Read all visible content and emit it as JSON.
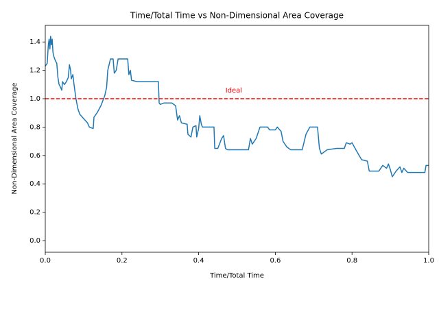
{
  "chart_data": {
    "type": "line",
    "title": "Time/Total Time vs Non-Dimensional Area Coverage",
    "x_label": "Time/Total Time",
    "y_label": "Non-Dimensional Area Coverage",
    "color": "#1f77b4",
    "x": [
      0,
      0.005,
      0.008,
      0.01,
      0.012,
      0.014,
      0.016,
      0.018,
      0.02,
      0.022,
      0.026,
      0.03,
      0.033,
      0.036,
      0.04,
      0.043,
      0.045,
      0.05,
      0.055,
      0.06,
      0.063,
      0.066,
      0.068,
      0.072,
      0.075,
      0.08,
      0.085,
      0.09,
      0.1,
      0.11,
      0.115,
      0.125,
      0.127,
      0.135,
      0.145,
      0.155,
      0.16,
      0.163,
      0.17,
      0.177,
      0.18,
      0.185,
      0.19,
      0.215,
      0.218,
      0.222,
      0.225,
      0.24,
      0.26,
      0.295,
      0.297,
      0.3,
      0.31,
      0.33,
      0.34,
      0.345,
      0.35,
      0.355,
      0.37,
      0.372,
      0.38,
      0.385,
      0.393,
      0.395,
      0.4,
      0.403,
      0.407,
      0.41,
      0.44,
      0.442,
      0.45,
      0.46,
      0.465,
      0.47,
      0.475,
      0.53,
      0.535,
      0.54,
      0.55,
      0.56,
      0.58,
      0.585,
      0.6,
      0.605,
      0.615,
      0.62,
      0.63,
      0.64,
      0.67,
      0.68,
      0.69,
      0.71,
      0.715,
      0.72,
      0.735,
      0.76,
      0.78,
      0.785,
      0.795,
      0.8,
      0.81,
      0.825,
      0.84,
      0.845,
      0.87,
      0.88,
      0.89,
      0.895,
      0.9,
      0.905,
      0.915,
      0.925,
      0.93,
      0.935,
      0.945,
      0.96,
      0.99,
      0.993,
      1.0
    ],
    "values": [
      1.23,
      1.25,
      1.38,
      1.42,
      1.35,
      1.44,
      1.38,
      1.42,
      1.33,
      1.3,
      1.27,
      1.25,
      1.15,
      1.1,
      1.08,
      1.06,
      1.12,
      1.1,
      1.12,
      1.15,
      1.24,
      1.2,
      1.14,
      1.17,
      1.1,
      1.0,
      0.93,
      0.89,
      0.86,
      0.83,
      0.8,
      0.79,
      0.87,
      0.9,
      0.95,
      1.02,
      1.08,
      1.2,
      1.28,
      1.28,
      1.18,
      1.2,
      1.28,
      1.28,
      1.17,
      1.2,
      1.13,
      1.12,
      1.12,
      1.12,
      0.97,
      0.96,
      0.97,
      0.97,
      0.95,
      0.85,
      0.88,
      0.83,
      0.82,
      0.75,
      0.73,
      0.8,
      0.81,
      0.73,
      0.79,
      0.88,
      0.82,
      0.8,
      0.8,
      0.65,
      0.65,
      0.72,
      0.74,
      0.65,
      0.64,
      0.64,
      0.72,
      0.68,
      0.72,
      0.8,
      0.8,
      0.78,
      0.78,
      0.8,
      0.77,
      0.7,
      0.66,
      0.64,
      0.64,
      0.75,
      0.8,
      0.8,
      0.65,
      0.61,
      0.64,
      0.65,
      0.65,
      0.69,
      0.68,
      0.69,
      0.64,
      0.57,
      0.56,
      0.49,
      0.49,
      0.53,
      0.51,
      0.54,
      0.5,
      0.45,
      0.49,
      0.52,
      0.48,
      0.51,
      0.48,
      0.48,
      0.48,
      0.53,
      0.53
    ],
    "reference_line": {
      "value": 1.0,
      "color": "#ff0000",
      "label": "Ideal"
    },
    "xlim": [
      0,
      1
    ],
    "xticks": [
      {
        "value": 0,
        "label": "0.0"
      },
      0.2,
      0.4,
      0.6,
      0.8,
      {
        "value": 1,
        "label": "1.0"
      }
    ],
    "ylim": [
      -0.082,
      1.517
    ],
    "yticks": [
      {
        "value": 0,
        "label": "0.0"
      },
      0.2,
      0.4,
      0.6,
      0.8,
      {
        "value": 1,
        "label": "1.0"
      },
      1.2,
      1.4
    ]
  }
}
